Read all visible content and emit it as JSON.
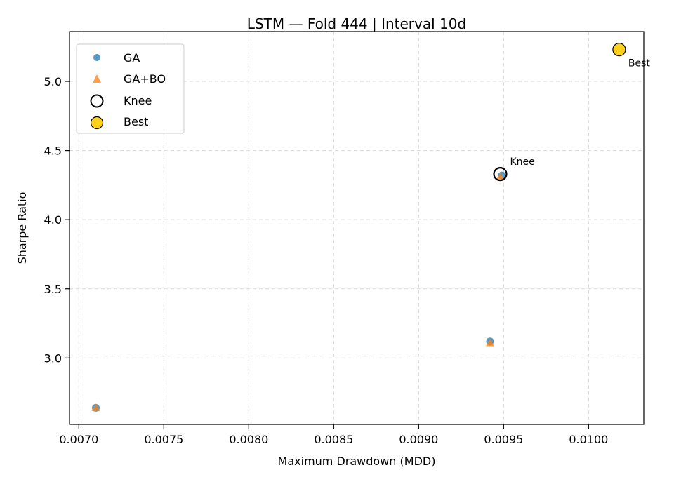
{
  "chart_data": {
    "type": "scatter",
    "title": "LSTM — Fold 444 | Interval 10d",
    "xlabel": "Maximum Drawdown (MDD)",
    "ylabel": "Sharpe Ratio",
    "xlim": [
      0.006945,
      0.010325
    ],
    "ylim": [
      2.52,
      5.36
    ],
    "xticks": [
      0.007,
      0.0075,
      0.008,
      0.0085,
      0.009,
      0.0095,
      0.01
    ],
    "xtick_labels": [
      "0.0070",
      "0.0075",
      "0.0080",
      "0.0085",
      "0.0090",
      "0.0095",
      "0.0100"
    ],
    "yticks": [
      3.0,
      3.5,
      4.0,
      4.5,
      5.0
    ],
    "ytick_labels": [
      "3.0",
      "3.5",
      "4.0",
      "4.5",
      "5.0"
    ],
    "grid": true,
    "legend_position": "top-left",
    "series": [
      {
        "name": "GA",
        "marker": "circle",
        "color": "#1f77b4",
        "points": [
          {
            "x": 0.0071,
            "y": 2.64
          },
          {
            "x": 0.00942,
            "y": 3.12
          },
          {
            "x": 0.00949,
            "y": 4.32
          }
        ]
      },
      {
        "name": "GA+BO",
        "marker": "triangle",
        "color": "#ff7f0e",
        "points": [
          {
            "x": 0.0071,
            "y": 2.64
          },
          {
            "x": 0.00942,
            "y": 3.11
          },
          {
            "x": 0.00948,
            "y": 4.31
          }
        ]
      },
      {
        "name": "Knee",
        "marker": "ring",
        "color": "#000000",
        "points": [
          {
            "x": 0.00948,
            "y": 4.33
          }
        ]
      },
      {
        "name": "Best",
        "marker": "filled-circle",
        "color": "#ffd11a",
        "points": [
          {
            "x": 0.01018,
            "y": 5.23
          }
        ]
      }
    ],
    "annotations": [
      {
        "text": "Knee",
        "x": 0.00948,
        "y": 4.33,
        "anchor": "upper-right"
      },
      {
        "text": "Best",
        "x": 0.01018,
        "y": 5.23,
        "anchor": "lower-right"
      }
    ]
  }
}
